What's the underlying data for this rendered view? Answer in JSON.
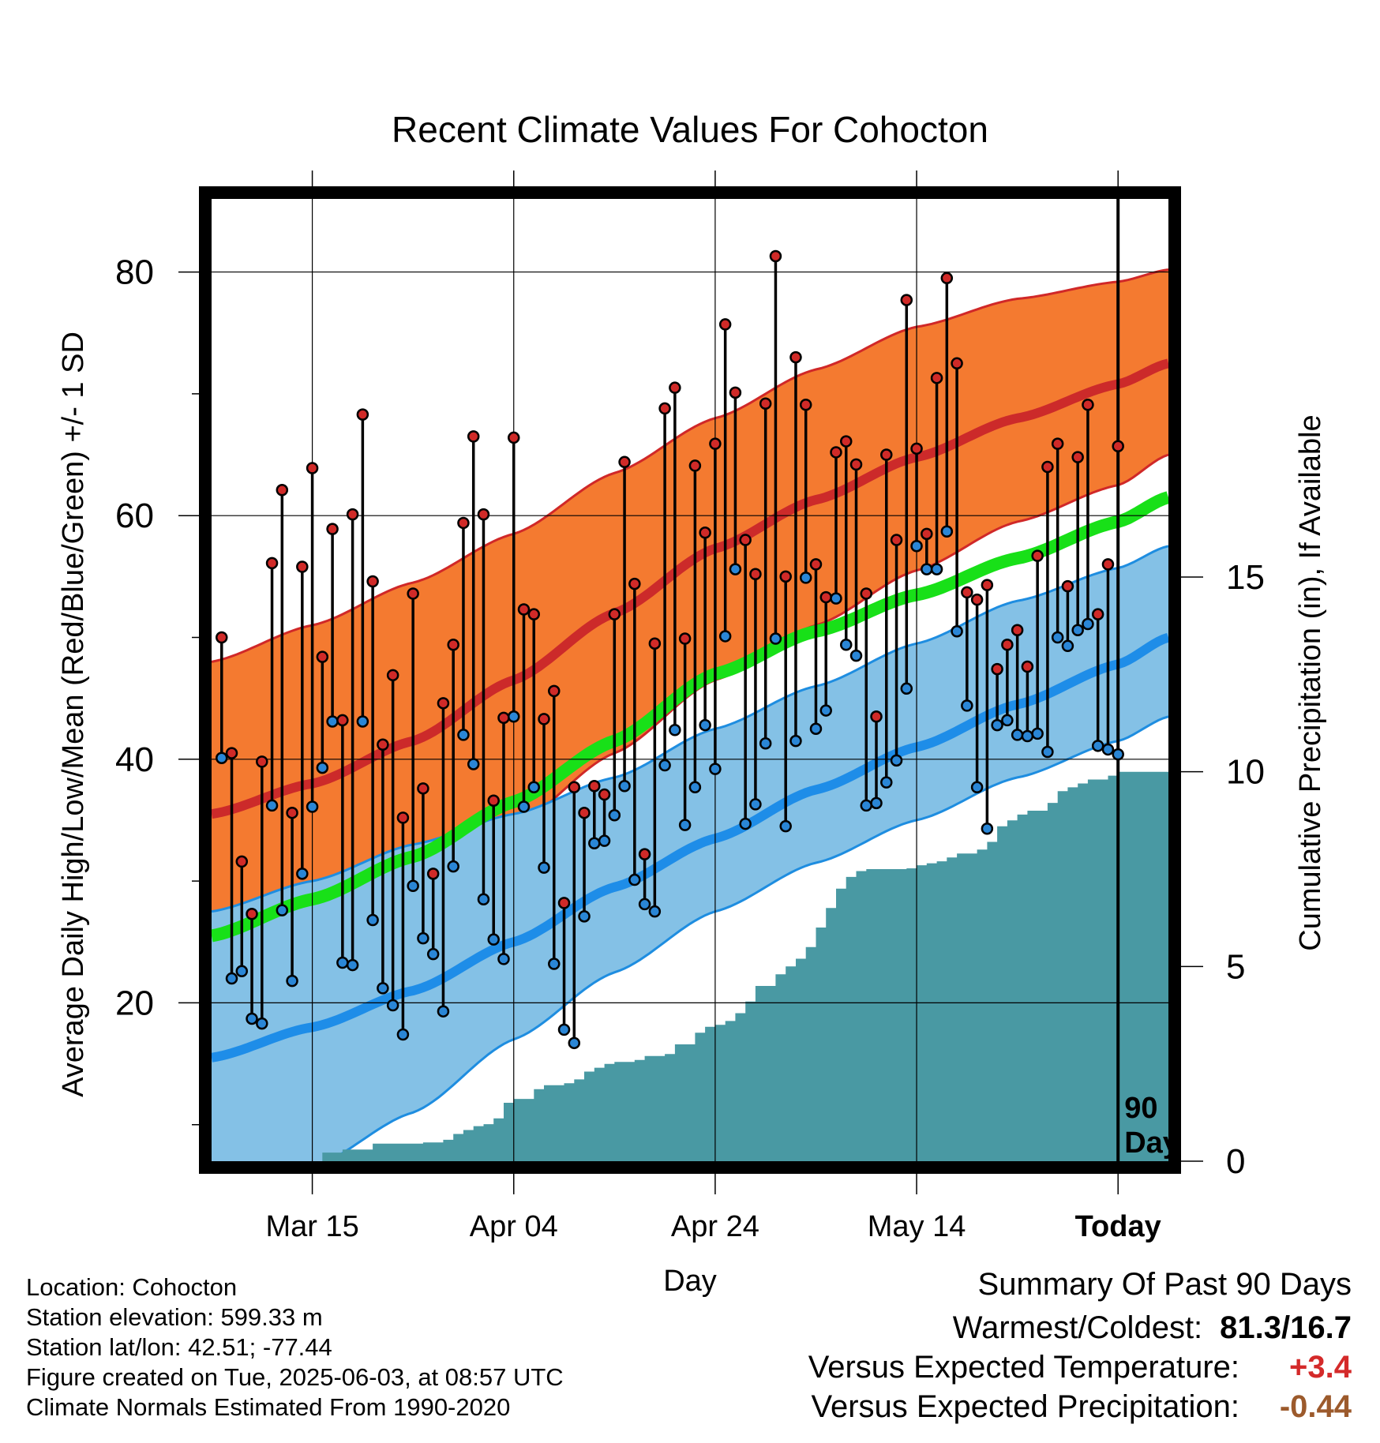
{
  "colors": {
    "high_band": "#f47a30",
    "high_edge": "#d02828",
    "high_mean": "#cc2a2a",
    "low_band": "#84c1e6",
    "low_edge": "#1e8de0",
    "low_mean": "#1e8de8",
    "daily_mean": "#18e018",
    "precip_fill": "#4999a3",
    "high_dot": "#d02a28",
    "low_dot": "#2a86d6",
    "temp_anomaly": "#d42a2a",
    "precip_anomaly": "#9c5a2c"
  },
  "chart_data": {
    "type": "line",
    "title": "Recent Climate Values For Cohocton",
    "xlabel": "Day",
    "ylabel": "Average Daily High/Low/Mean (Red/Blue/Green) +/- 1 SD",
    "y2label": "Cumulative Precipitation (in), If Available",
    "x_range": [
      "2025-03-05",
      "2025-06-08"
    ],
    "ylim": [
      7,
      86
    ],
    "y2lim": [
      0,
      15
    ],
    "x_ticks": [
      {
        "date": "2025-03-15",
        "label": "Mar 15"
      },
      {
        "date": "2025-04-04",
        "label": "Apr 04"
      },
      {
        "date": "2025-04-24",
        "label": "Apr 24"
      },
      {
        "date": "2025-05-14",
        "label": "May 14"
      },
      {
        "date": "2025-06-03",
        "label": "Today"
      }
    ],
    "y_ticks": [
      {
        "value": 20,
        "label": "20"
      },
      {
        "value": 40,
        "label": "40"
      },
      {
        "value": 60,
        "label": "60"
      },
      {
        "value": 80,
        "label": "80"
      }
    ],
    "y_minor_ticks": [
      10,
      30,
      50,
      70
    ],
    "y2_ticks": [
      {
        "value": 0,
        "label": "0"
      },
      {
        "value": 5,
        "label": "5"
      },
      {
        "value": 10,
        "label": "10"
      },
      {
        "value": 15,
        "label": "15"
      }
    ],
    "grid": true,
    "today": "2025-06-03",
    "today_label": [
      "90",
      "Days"
    ],
    "normals": {
      "dates": [
        "2025-03-05",
        "2025-03-15",
        "2025-03-25",
        "2025-04-04",
        "2025-04-14",
        "2025-04-24",
        "2025-05-04",
        "2025-05-14",
        "2025-05-24",
        "2025-06-03",
        "2025-06-08"
      ],
      "high_upper": [
        48,
        51,
        54.5,
        58.5,
        63.5,
        68,
        72,
        75.5,
        77.8,
        79.2,
        80.2
      ],
      "high_mean": [
        35.5,
        38,
        41.5,
        46.5,
        52,
        57.3,
        61.3,
        64.8,
        68,
        70.8,
        72.5
      ],
      "high_lower": [
        24,
        27,
        30.5,
        34.5,
        40.5,
        46.5,
        51,
        55.5,
        59.5,
        62.5,
        65
      ],
      "mean": [
        25.5,
        28.5,
        32,
        36.5,
        41.5,
        47,
        50.5,
        53.5,
        56.5,
        59.5,
        61.5
      ],
      "low_upper": [
        27.5,
        30,
        33,
        35.5,
        38.5,
        42.5,
        46,
        49.5,
        53,
        55.7,
        57.5
      ],
      "low_mean": [
        15.5,
        18,
        21,
        25,
        29.5,
        33.5,
        37.5,
        41,
        44.5,
        47.8,
        50
      ],
      "low_lower": [
        3,
        6.5,
        11,
        17,
        22.5,
        27.5,
        31.5,
        35,
        38.5,
        41.5,
        43.5
      ]
    },
    "series": [
      {
        "name": "High",
        "values": [
          50.0,
          40.5,
          31.6,
          27.3,
          39.8,
          56.1,
          62.1,
          35.6,
          55.8,
          63.9,
          48.4,
          58.9,
          43.2,
          60.1,
          68.3,
          54.6,
          41.2,
          46.9,
          35.2,
          53.6,
          37.6,
          30.6,
          44.6,
          49.4,
          59.4,
          66.5,
          60.1,
          36.6,
          43.4,
          66.4,
          52.3,
          51.9,
          43.3,
          45.6,
          28.2,
          37.7,
          35.6,
          37.8,
          37.1,
          51.9,
          64.4,
          54.4,
          32.2,
          49.5,
          68.8,
          70.5,
          49.9,
          64.1,
          58.6,
          65.9,
          75.7,
          70.1,
          58.0,
          55.2,
          69.2,
          81.3,
          55.0,
          73.0,
          69.1,
          56.0,
          53.3,
          65.2,
          66.1,
          64.2,
          53.6,
          43.5,
          65.0,
          58.0,
          77.7,
          65.5,
          58.5,
          71.3,
          79.5,
          72.5,
          53.7,
          53.1,
          54.3,
          47.4,
          49.4,
          50.6,
          47.6,
          56.7,
          64.0,
          65.9,
          54.2,
          64.8,
          69.1,
          51.9,
          56.0,
          65.7
        ]
      },
      {
        "name": "Low",
        "values": [
          40.1,
          22.0,
          22.6,
          18.7,
          18.3,
          36.2,
          27.6,
          21.8,
          30.6,
          36.1,
          39.3,
          43.1,
          23.3,
          23.1,
          43.1,
          26.8,
          21.2,
          19.8,
          17.4,
          29.6,
          25.3,
          24.0,
          19.3,
          31.2,
          42.0,
          39.6,
          28.5,
          25.2,
          23.6,
          43.5,
          36.1,
          37.7,
          31.1,
          23.2,
          17.8,
          16.7,
          27.1,
          33.1,
          33.3,
          35.4,
          37.8,
          30.1,
          28.1,
          27.5,
          39.5,
          42.4,
          34.6,
          37.7,
          42.8,
          39.2,
          50.1,
          55.6,
          34.7,
          36.3,
          41.3,
          49.9,
          34.5,
          41.5,
          54.9,
          42.5,
          44.0,
          53.2,
          49.4,
          48.5,
          36.2,
          36.4,
          38.1,
          39.9,
          45.8,
          57.5,
          55.6,
          55.6,
          58.7,
          50.5,
          44.4,
          37.7,
          34.3,
          42.8,
          43.2,
          42.0,
          41.9,
          42.1,
          40.6,
          50.0,
          49.3,
          50.6,
          51.1,
          41.1,
          40.8,
          40.4
        ]
      }
    ],
    "precip": {
      "name": "Cumulative Precipitation",
      "values": [
        0.0,
        0.0,
        0.0,
        0.0,
        0.0,
        0.0,
        0.0,
        0.0,
        0.0,
        0.0,
        0.0,
        0.22,
        0.22,
        0.3,
        0.3,
        0.3,
        0.45,
        0.45,
        0.45,
        0.45,
        0.45,
        0.48,
        0.48,
        0.55,
        0.7,
        0.8,
        0.9,
        0.95,
        1.1,
        1.5,
        1.6,
        1.6,
        1.85,
        1.95,
        1.95,
        2.0,
        2.1,
        2.3,
        2.4,
        2.5,
        2.55,
        2.55,
        2.6,
        2.7,
        2.7,
        2.75,
        3.0,
        3.0,
        3.3,
        3.45,
        3.5,
        3.6,
        3.8,
        4.1,
        4.5,
        4.5,
        4.8,
        5.0,
        5.2,
        5.5,
        6.0,
        6.5,
        7.0,
        7.3,
        7.45,
        7.5,
        7.5,
        7.5,
        7.5,
        7.52,
        7.6,
        7.65,
        7.7,
        7.8,
        7.9,
        7.9,
        8.0,
        8.2,
        8.6,
        8.75,
        8.9,
        9.0,
        9.0,
        9.2,
        9.5,
        9.6,
        9.7,
        9.8,
        9.8,
        9.9,
        10.0,
        10.0,
        10.0,
        10.0,
        10.0,
        10.0,
        10.0,
        10.0
      ]
    }
  },
  "info": {
    "location": "Location: Cohocton",
    "elevation": "Station elevation: 599.33 m",
    "latlon": "Station lat/lon: 42.51; -77.44",
    "created": "Figure created on Tue, 2025-06-03, at 08:57 UTC",
    "normals": "Climate Normals Estimated From 1990-2020"
  },
  "summary": {
    "title": "Summary Of Past 90 Days",
    "warmest_coldest_label": "Warmest/Coldest:",
    "warmest_coldest_value": "81.3/16.7",
    "temp_label": "Versus Expected Temperature:",
    "temp_value": "+3.4",
    "precip_label": "Versus Expected Precipitation:",
    "precip_value": "-0.44"
  }
}
